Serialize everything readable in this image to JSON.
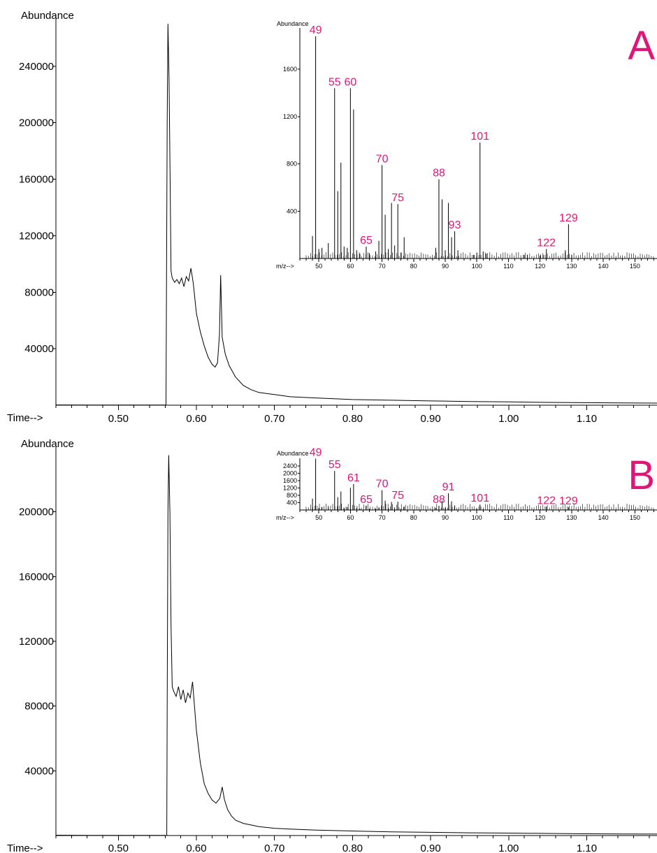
{
  "chart_data": [
    {
      "type": "line",
      "panel_label": "A",
      "ylabel": "Abundance",
      "xlabel": "Time-->",
      "xlim": [
        0.42,
        1.19
      ],
      "ylim": [
        0,
        275000
      ],
      "x_ticks": [
        "0.50",
        "0.60",
        "0.70",
        "0.80",
        "0.90",
        "1.00",
        "1.10"
      ],
      "x_tick_values": [
        0.5,
        0.6,
        0.7,
        0.8,
        0.9,
        1.0,
        1.1
      ],
      "y_ticks": [
        "40000",
        "80000",
        "120000",
        "160000",
        "200000",
        "240000"
      ],
      "y_tick_values": [
        40000,
        80000,
        120000,
        160000,
        200000,
        240000
      ],
      "x": [
        0.42,
        0.48,
        0.56,
        0.561,
        0.5615,
        0.5625,
        0.5635,
        0.565,
        0.5665,
        0.5675,
        0.569,
        0.572,
        0.575,
        0.578,
        0.581,
        0.584,
        0.587,
        0.59,
        0.593,
        0.596,
        0.6,
        0.605,
        0.61,
        0.615,
        0.62,
        0.624,
        0.627,
        0.6295,
        0.631,
        0.633,
        0.637,
        0.642,
        0.65,
        0.66,
        0.67,
        0.68,
        0.7,
        0.72,
        0.75,
        0.8,
        0.85,
        0.9,
        0.95,
        1.0,
        1.05,
        1.1,
        1.19
      ],
      "y": [
        200,
        100,
        100,
        0,
        60000,
        200000,
        270000,
        230000,
        150000,
        95000,
        90000,
        87000,
        89000,
        86000,
        90000,
        84000,
        91000,
        88000,
        97000,
        86000,
        65000,
        52000,
        42000,
        34000,
        29000,
        27000,
        30000,
        50000,
        92000,
        48000,
        36000,
        28000,
        20000,
        14000,
        11000,
        9000,
        7500,
        6000,
        5200,
        4000,
        3500,
        3000,
        2600,
        2300,
        2000,
        1800,
        1500
      ]
    },
    {
      "type": "bar",
      "panel_label": "A",
      "ylabel": "Abundance",
      "xlabel": "m/z-->",
      "xlim": [
        44,
        157
      ],
      "ylim": [
        0,
        1950
      ],
      "x_ticks": [
        "50",
        "60",
        "70",
        "80",
        "90",
        "100",
        "110",
        "120",
        "130",
        "140",
        "150"
      ],
      "x_tick_values": [
        50,
        60,
        70,
        80,
        90,
        100,
        110,
        120,
        130,
        140,
        150
      ],
      "y_ticks": [
        "400",
        "800",
        "1200",
        "1600"
      ],
      "y_tick_values": [
        400,
        800,
        1200,
        1600
      ],
      "x": [
        48,
        49,
        50,
        51,
        53,
        55,
        56,
        57,
        58,
        59,
        60,
        61,
        62,
        63,
        65,
        66,
        68,
        69,
        70,
        71,
        72,
        73,
        74,
        75,
        76,
        77,
        87,
        88,
        89,
        90,
        91,
        92,
        93,
        94,
        99,
        100,
        101,
        102,
        103,
        115,
        116,
        120,
        121,
        122,
        128,
        129,
        130
      ],
      "values": [
        190,
        1880,
        80,
        90,
        130,
        1440,
        570,
        810,
        100,
        90,
        1440,
        1260,
        70,
        40,
        100,
        45,
        60,
        150,
        790,
        370,
        80,
        470,
        110,
        460,
        50,
        180,
        90,
        670,
        500,
        70,
        470,
        180,
        230,
        70,
        30,
        50,
        980,
        60,
        40,
        30,
        30,
        25,
        30,
        80,
        70,
        290,
        30
      ],
      "peak_labels": [
        {
          "mz": 49,
          "label": "49"
        },
        {
          "mz": 55,
          "label": "55"
        },
        {
          "mz": 60,
          "label": "60"
        },
        {
          "mz": 65,
          "label": "65"
        },
        {
          "mz": 70,
          "label": "70"
        },
        {
          "mz": 75,
          "label": "75"
        },
        {
          "mz": 88,
          "label": "88"
        },
        {
          "mz": 93,
          "label": "93"
        },
        {
          "mz": 101,
          "label": "101"
        },
        {
          "mz": 122,
          "label": "122"
        },
        {
          "mz": 129,
          "label": "129"
        }
      ]
    },
    {
      "type": "line",
      "panel_label": "B",
      "ylabel": "Abundance",
      "xlabel": "Time-->",
      "xlim": [
        0.42,
        1.19
      ],
      "ylim": [
        0,
        240000
      ],
      "x_ticks": [
        "0.50",
        "0.60",
        "0.70",
        "0.80",
        "0.90",
        "1.00",
        "1.10"
      ],
      "x_tick_values": [
        0.5,
        0.6,
        0.7,
        0.8,
        0.9,
        1.0,
        1.1
      ],
      "y_ticks": [
        "40000",
        "80000",
        "120000",
        "160000",
        "200000"
      ],
      "y_tick_values": [
        40000,
        80000,
        120000,
        160000,
        200000
      ],
      "x": [
        0.42,
        0.48,
        0.56,
        0.562,
        0.5625,
        0.5635,
        0.5645,
        0.566,
        0.5675,
        0.569,
        0.571,
        0.574,
        0.577,
        0.58,
        0.583,
        0.586,
        0.589,
        0.592,
        0.595,
        0.6,
        0.605,
        0.61,
        0.615,
        0.62,
        0.625,
        0.63,
        0.633,
        0.636,
        0.64,
        0.645,
        0.65,
        0.66,
        0.67,
        0.68,
        0.7,
        0.72,
        0.75,
        0.8,
        0.85,
        0.9,
        0.95,
        1.0,
        1.05,
        1.1,
        1.19
      ],
      "y": [
        200,
        100,
        100,
        0,
        80000,
        200000,
        235000,
        200000,
        130000,
        92000,
        89000,
        86000,
        92000,
        84000,
        90000,
        82000,
        88000,
        85000,
        95000,
        65000,
        45000,
        32000,
        26000,
        22000,
        20000,
        23000,
        30000,
        22000,
        16000,
        12000,
        9500,
        7500,
        6500,
        5500,
        4500,
        4000,
        3400,
        2800,
        2300,
        2000,
        1700,
        1500,
        1300,
        1100,
        900
      ]
    },
    {
      "type": "bar",
      "panel_label": "B",
      "ylabel": "Abundance",
      "xlabel": "m/z-->",
      "xlim": [
        44,
        157
      ],
      "ylim": [
        0,
        2820
      ],
      "x_ticks": [
        "50",
        "60",
        "70",
        "80",
        "90",
        "100",
        "110",
        "120",
        "130",
        "140",
        "150"
      ],
      "x_tick_values": [
        50,
        60,
        70,
        80,
        90,
        100,
        110,
        120,
        130,
        140,
        150
      ],
      "y_ticks": [
        "400",
        "800",
        "1200",
        "1600",
        "2000",
        "2400"
      ],
      "y_tick_values": [
        400,
        800,
        1200,
        1600,
        2000,
        2400
      ],
      "x": [
        48,
        49,
        50,
        51,
        53,
        55,
        56,
        57,
        58,
        59,
        60,
        61,
        62,
        63,
        65,
        66,
        68,
        69,
        70,
        71,
        72,
        73,
        74,
        75,
        76,
        77,
        87,
        88,
        89,
        90,
        91,
        92,
        93,
        99,
        100,
        101,
        102,
        120,
        121,
        122,
        128,
        129,
        130
      ],
      "values": [
        620,
        2800,
        110,
        160,
        160,
        2130,
        700,
        1010,
        110,
        160,
        1210,
        1410,
        120,
        70,
        230,
        70,
        80,
        140,
        1080,
        510,
        110,
        440,
        110,
        450,
        60,
        200,
        120,
        230,
        510,
        130,
        910,
        470,
        250,
        40,
        70,
        300,
        50,
        30,
        40,
        180,
        30,
        150,
        30
      ],
      "peak_labels": [
        {
          "mz": 49,
          "label": "49"
        },
        {
          "mz": 55,
          "label": "55"
        },
        {
          "mz": 61,
          "label": "61"
        },
        {
          "mz": 65,
          "label": "65"
        },
        {
          "mz": 70,
          "label": "70"
        },
        {
          "mz": 75,
          "label": "75"
        },
        {
          "mz": 88,
          "label": "88"
        },
        {
          "mz": 91,
          "label": "91"
        },
        {
          "mz": 101,
          "label": "101"
        },
        {
          "mz": 122,
          "label": "122"
        },
        {
          "mz": 129,
          "label": "129"
        }
      ]
    }
  ],
  "colors": {
    "trace": "#000000",
    "peak_label": "#e0157a",
    "panel_letter": "#e0157a"
  }
}
